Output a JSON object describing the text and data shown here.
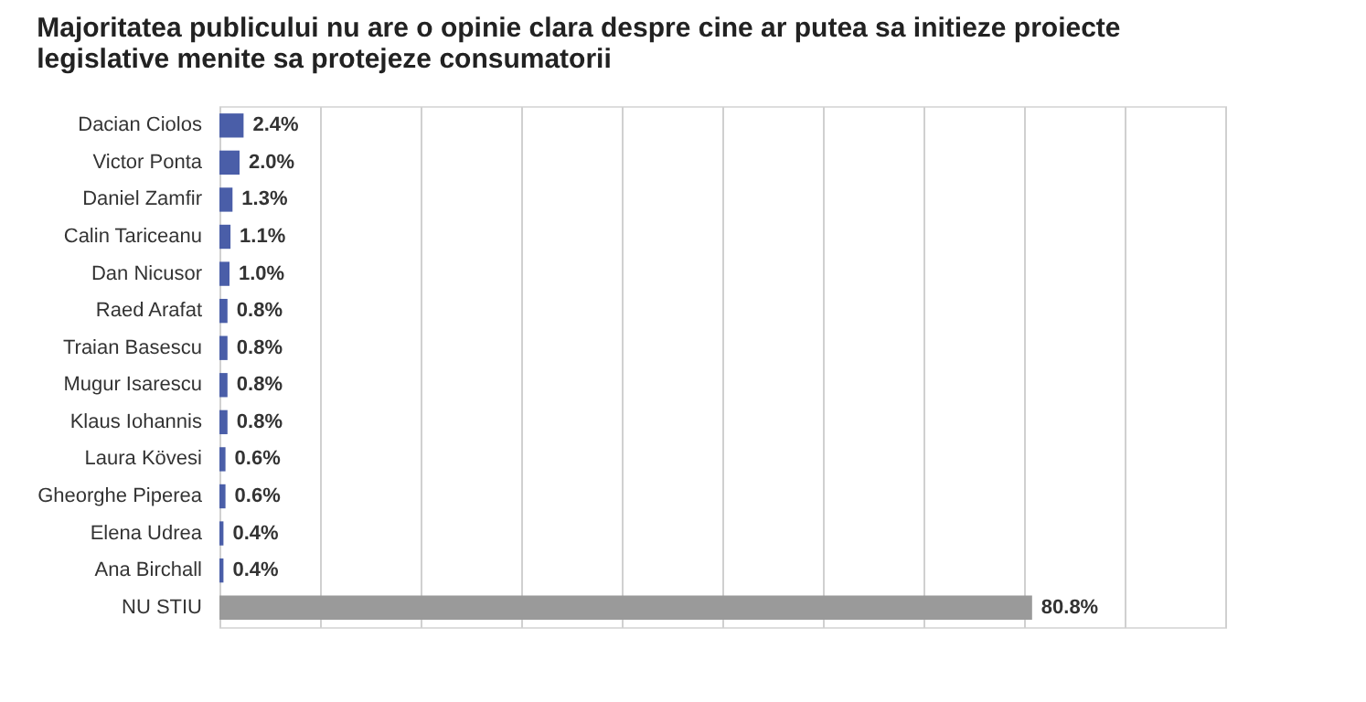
{
  "chart_data": {
    "type": "bar",
    "orientation": "horizontal",
    "title": [
      "Majoritatea publicului nu are o opinie clara despre cine ar putea sa initieze proiecte",
      "legislative menite sa protejeze consumatorii"
    ],
    "categories": [
      "Dacian Ciolos",
      "Victor Ponta",
      "Daniel Zamfir",
      "Calin Tariceanu",
      "Dan Nicusor",
      "Raed Arafat",
      "Traian Basescu",
      "Mugur Isarescu",
      "Klaus Iohannis",
      "Laura Kövesi",
      "Gheorghe Piperea",
      "Elena Udrea",
      "Ana Birchall",
      "NU STIU"
    ],
    "values": [
      2.4,
      2.0,
      1.3,
      1.1,
      1.0,
      0.8,
      0.8,
      0.8,
      0.8,
      0.6,
      0.6,
      0.4,
      0.4,
      80.8
    ],
    "value_labels": [
      "2.4%",
      "2.0%",
      "1.3%",
      "1.1%",
      "1.0%",
      "0.8%",
      "0.8%",
      "0.8%",
      "0.8%",
      "0.6%",
      "0.6%",
      "0.4%",
      "0.4%",
      "80.8%"
    ],
    "colors": [
      "#4a5ea8",
      "#4a5ea8",
      "#4a5ea8",
      "#4a5ea8",
      "#4a5ea8",
      "#4a5ea8",
      "#4a5ea8",
      "#4a5ea8",
      "#4a5ea8",
      "#4a5ea8",
      "#4a5ea8",
      "#4a5ea8",
      "#4a5ea8",
      "#9a9a9a"
    ],
    "xlim": [
      0,
      100
    ],
    "xticks": [
      {
        "value": 0,
        "label": null
      },
      {
        "value": 10,
        "label": null
      },
      {
        "value": 20,
        "label": null
      },
      {
        "value": 30,
        "label": null
      },
      {
        "value": 40,
        "label": null
      },
      {
        "value": 50,
        "label": null
      },
      {
        "value": 60,
        "label": null
      },
      {
        "value": 70,
        "label": null
      },
      {
        "value": 80,
        "label": null
      },
      {
        "value": 90,
        "label": null
      },
      {
        "value": 100,
        "label": null
      }
    ],
    "grid": "x",
    "tick_labels": "y"
  }
}
